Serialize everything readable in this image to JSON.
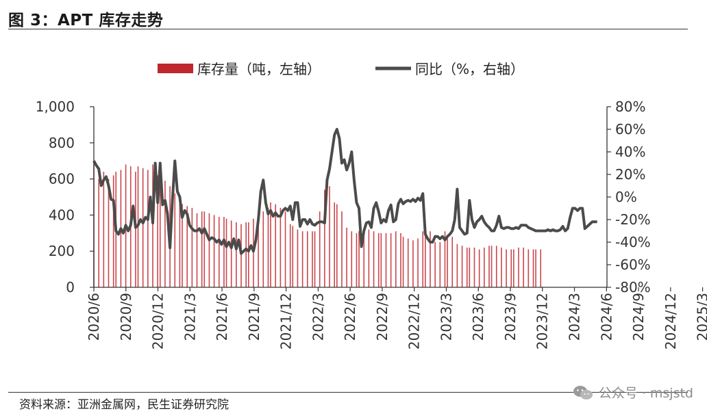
{
  "header": {
    "title": "图 3：APT 库存走势"
  },
  "footer": {
    "source": "资料来源：亚洲金属网，民生证券研究院"
  },
  "watermark": {
    "text": "公众号 · msjstd",
    "icon": "wechat-icon"
  },
  "colors": {
    "bar": "#c0262d",
    "line": "#4b4b4b",
    "axis": "#333333"
  },
  "chart_data": {
    "type": "bar",
    "title": "",
    "legend": {
      "placement": "top",
      "entries": [
        "库存量（吨，左轴）",
        "同比（%，右轴）"
      ]
    },
    "x_tick_labels": [
      "2020/6",
      "2020/9",
      "2020/12",
      "2021/3",
      "2021/6",
      "2021/9",
      "2021/12",
      "2022/3",
      "2022/6",
      "2022/9",
      "2022/12",
      "2023/3",
      "2023/6",
      "2023/9",
      "2023/12",
      "2024/3",
      "2024/6",
      "2024/9",
      "2024/12",
      "2025/3"
    ],
    "y_left": {
      "ylim": [
        0,
        1000
      ],
      "ticks": [
        "0",
        "200",
        "400",
        "600",
        "800",
        "1,000"
      ]
    },
    "y_right": {
      "ylim": [
        -80,
        80
      ],
      "ticks": [
        "-80%",
        "-60%",
        "-40%",
        "-20%",
        "0%",
        "20%",
        "40%",
        "60%",
        "80%"
      ]
    },
    "series": [
      {
        "name": "库存量（吨，左轴）",
        "type": "bar",
        "axis": "left",
        "points": [
          [
            0,
            680
          ],
          [
            2,
            600
          ],
          [
            4,
            640
          ],
          [
            6,
            600
          ],
          [
            8,
            620
          ],
          [
            9,
            640
          ],
          [
            11,
            650
          ],
          [
            13,
            680
          ],
          [
            15,
            670
          ],
          [
            17,
            640
          ],
          [
            18,
            670
          ],
          [
            20,
            660
          ],
          [
            22,
            650
          ],
          [
            24,
            680
          ],
          [
            26,
            620
          ],
          [
            27,
            600
          ],
          [
            29,
            590
          ],
          [
            31,
            560
          ],
          [
            33,
            520
          ],
          [
            35,
            500
          ],
          [
            36,
            460
          ],
          [
            38,
            450
          ],
          [
            40,
            440
          ],
          [
            42,
            410
          ],
          [
            44,
            420
          ],
          [
            45,
            420
          ],
          [
            47,
            410
          ],
          [
            49,
            400
          ],
          [
            51,
            390
          ],
          [
            53,
            390
          ],
          [
            54,
            380
          ],
          [
            56,
            370
          ],
          [
            58,
            360
          ],
          [
            60,
            350
          ],
          [
            62,
            360
          ],
          [
            63,
            360
          ],
          [
            65,
            380
          ],
          [
            67,
            380
          ],
          [
            69,
            420
          ],
          [
            71,
            440
          ],
          [
            72,
            470
          ],
          [
            74,
            460
          ],
          [
            76,
            440
          ],
          [
            78,
            420
          ],
          [
            80,
            350
          ],
          [
            81,
            340
          ],
          [
            83,
            320
          ],
          [
            85,
            310
          ],
          [
            87,
            310
          ],
          [
            89,
            310
          ],
          [
            90,
            310
          ],
          [
            92,
            420
          ],
          [
            94,
            540
          ],
          [
            96,
            560
          ],
          [
            98,
            470
          ],
          [
            99,
            460
          ],
          [
            101,
            420
          ],
          [
            103,
            330
          ],
          [
            105,
            310
          ],
          [
            107,
            300
          ],
          [
            108,
            310
          ],
          [
            110,
            320
          ],
          [
            112,
            320
          ],
          [
            114,
            310
          ],
          [
            116,
            300
          ],
          [
            117,
            300
          ],
          [
            119,
            300
          ],
          [
            121,
            300
          ],
          [
            123,
            310
          ],
          [
            125,
            300
          ],
          [
            126,
            280
          ],
          [
            128,
            270
          ],
          [
            130,
            260
          ],
          [
            132,
            270
          ],
          [
            134,
            310
          ],
          [
            135,
            300
          ],
          [
            137,
            310
          ],
          [
            139,
            250
          ],
          [
            141,
            250
          ],
          [
            143,
            310
          ],
          [
            144,
            280
          ],
          [
            146,
            280
          ],
          [
            148,
            240
          ],
          [
            150,
            230
          ],
          [
            152,
            220
          ],
          [
            153,
            220
          ],
          [
            155,
            220
          ],
          [
            157,
            210
          ],
          [
            159,
            220
          ],
          [
            161,
            230
          ],
          [
            162,
            230
          ],
          [
            164,
            230
          ],
          [
            166,
            220
          ],
          [
            168,
            210
          ],
          [
            170,
            210
          ],
          [
            171,
            210
          ],
          [
            173,
            220
          ],
          [
            175,
            220
          ],
          [
            177,
            210
          ],
          [
            179,
            210
          ],
          [
            180,
            210
          ],
          [
            182,
            210
          ]
        ]
      },
      {
        "name": "同比（%，右轴）",
        "type": "line",
        "axis": "right",
        "points": [
          [
            0,
            32
          ],
          [
            1,
            28
          ],
          [
            2,
            25
          ],
          [
            3,
            10
          ],
          [
            4,
            15
          ],
          [
            5,
            18
          ],
          [
            6,
            10
          ],
          [
            7,
            -2
          ],
          [
            8,
            -3
          ],
          [
            9,
            -30
          ],
          [
            10,
            -33
          ],
          [
            11,
            -28
          ],
          [
            12,
            -32
          ],
          [
            13,
            -25
          ],
          [
            14,
            -30
          ],
          [
            15,
            -25
          ],
          [
            16,
            -8
          ],
          [
            17,
            -27
          ],
          [
            18,
            -25
          ],
          [
            19,
            -20
          ],
          [
            20,
            -23
          ],
          [
            21,
            -18
          ],
          [
            22,
            -20
          ],
          [
            23,
            0
          ],
          [
            24,
            -23
          ],
          [
            25,
            30
          ],
          [
            26,
            -5
          ],
          [
            27,
            30
          ],
          [
            28,
            -7
          ],
          [
            29,
            -3
          ],
          [
            30,
            -15
          ],
          [
            31,
            -45
          ],
          [
            32,
            -3
          ],
          [
            33,
            32
          ],
          [
            34,
            5
          ],
          [
            35,
            0
          ],
          [
            36,
            -18
          ],
          [
            37,
            -12
          ],
          [
            38,
            -15
          ],
          [
            39,
            -25
          ],
          [
            40,
            -28
          ],
          [
            41,
            -30
          ],
          [
            42,
            -30
          ],
          [
            43,
            -28
          ],
          [
            44,
            -32
          ],
          [
            45,
            -28
          ],
          [
            46,
            -33
          ],
          [
            47,
            -38
          ],
          [
            48,
            -36
          ],
          [
            49,
            -37
          ],
          [
            50,
            -40
          ],
          [
            51,
            -38
          ],
          [
            52,
            -42
          ],
          [
            53,
            -38
          ],
          [
            54,
            -44
          ],
          [
            55,
            -40
          ],
          [
            56,
            -45
          ],
          [
            57,
            -37
          ],
          [
            58,
            -46
          ],
          [
            59,
            -38
          ],
          [
            60,
            -50
          ],
          [
            61,
            -48
          ],
          [
            62,
            -46
          ],
          [
            63,
            -48
          ],
          [
            64,
            -43
          ],
          [
            65,
            -48
          ],
          [
            66,
            -38
          ],
          [
            67,
            -20
          ],
          [
            68,
            5
          ],
          [
            69,
            15
          ],
          [
            70,
            -5
          ],
          [
            71,
            -15
          ],
          [
            72,
            -12
          ],
          [
            73,
            -17
          ],
          [
            74,
            -14
          ],
          [
            75,
            -17
          ],
          [
            76,
            -17
          ],
          [
            77,
            -12
          ],
          [
            78,
            -10
          ],
          [
            79,
            -12
          ],
          [
            80,
            -8
          ],
          [
            81,
            -20
          ],
          [
            82,
            -5
          ],
          [
            83,
            -5
          ],
          [
            84,
            -26
          ],
          [
            85,
            -20
          ],
          [
            86,
            -20
          ],
          [
            87,
            -24
          ],
          [
            88,
            -20
          ],
          [
            89,
            -24
          ],
          [
            90,
            -25
          ],
          [
            91,
            -23
          ],
          [
            92,
            -22
          ],
          [
            93,
            -22
          ],
          [
            94,
            -23
          ],
          [
            95,
            15
          ],
          [
            96,
            25
          ],
          [
            97,
            40
          ],
          [
            98,
            55
          ],
          [
            99,
            60
          ],
          [
            100,
            52
          ],
          [
            101,
            30
          ],
          [
            102,
            33
          ],
          [
            103,
            24
          ],
          [
            104,
            30
          ],
          [
            105,
            40
          ],
          [
            106,
            15
          ],
          [
            107,
            -5
          ],
          [
            108,
            -10
          ],
          [
            109,
            -44
          ],
          [
            110,
            -30
          ],
          [
            111,
            -23
          ],
          [
            112,
            -22
          ],
          [
            113,
            -27
          ],
          [
            114,
            -10
          ],
          [
            115,
            -5
          ],
          [
            116,
            -13
          ],
          [
            117,
            -23
          ],
          [
            118,
            -20
          ],
          [
            119,
            -22
          ],
          [
            120,
            -12
          ],
          [
            121,
            -7
          ],
          [
            122,
            -22
          ],
          [
            123,
            -20
          ],
          [
            124,
            -6
          ],
          [
            125,
            -2
          ],
          [
            126,
            -6
          ],
          [
            127,
            -4
          ],
          [
            128,
            -3
          ],
          [
            129,
            -4
          ],
          [
            130,
            -2
          ],
          [
            131,
            -4
          ],
          [
            132,
            -1
          ],
          [
            133,
            -3
          ],
          [
            134,
            3
          ],
          [
            135,
            -33
          ],
          [
            136,
            -37
          ],
          [
            137,
            -40
          ],
          [
            138,
            -40
          ],
          [
            139,
            -35
          ],
          [
            140,
            -35
          ],
          [
            141,
            -37
          ],
          [
            142,
            -35
          ],
          [
            143,
            -38
          ],
          [
            144,
            -35
          ],
          [
            145,
            -33
          ],
          [
            146,
            -30
          ],
          [
            147,
            -20
          ],
          [
            148,
            7
          ],
          [
            149,
            -27
          ],
          [
            150,
            -30
          ],
          [
            151,
            -33
          ],
          [
            152,
            -32
          ],
          [
            153,
            -3
          ],
          [
            154,
            -20
          ],
          [
            155,
            -27
          ],
          [
            156,
            -22
          ],
          [
            157,
            -20
          ],
          [
            158,
            -17
          ],
          [
            159,
            -22
          ],
          [
            160,
            -25
          ],
          [
            161,
            -27
          ],
          [
            162,
            -30
          ],
          [
            163,
            -30
          ],
          [
            164,
            -25
          ],
          [
            165,
            -17
          ],
          [
            166,
            -27
          ],
          [
            167,
            -28
          ],
          [
            168,
            -27
          ],
          [
            169,
            -27
          ],
          [
            170,
            -28
          ],
          [
            171,
            -28
          ],
          [
            172,
            -27
          ],
          [
            173,
            -28
          ],
          [
            174,
            -25
          ],
          [
            175,
            -25
          ],
          [
            176,
            -25
          ],
          [
            177,
            -27
          ],
          [
            178,
            -28
          ],
          [
            179,
            -29
          ],
          [
            180,
            -30
          ],
          [
            181,
            -30
          ],
          [
            182,
            -30
          ],
          [
            183,
            -30
          ],
          [
            184,
            -30
          ],
          [
            185,
            -29
          ],
          [
            186,
            -30
          ],
          [
            187,
            -29
          ],
          [
            188,
            -30
          ],
          [
            189,
            -30
          ],
          [
            190,
            -29
          ],
          [
            191,
            -26
          ],
          [
            192,
            -30
          ],
          [
            193,
            -28
          ],
          [
            194,
            -18
          ],
          [
            195,
            -10
          ],
          [
            196,
            -10
          ],
          [
            197,
            -12
          ],
          [
            198,
            -10
          ],
          [
            199,
            -10
          ],
          [
            200,
            -28
          ],
          [
            201,
            -26
          ],
          [
            202,
            -24
          ],
          [
            203,
            -22
          ],
          [
            204,
            -22
          ],
          [
            205,
            -22
          ]
        ]
      }
    ],
    "x_domain": [
      0,
      209
    ],
    "grid": false
  }
}
